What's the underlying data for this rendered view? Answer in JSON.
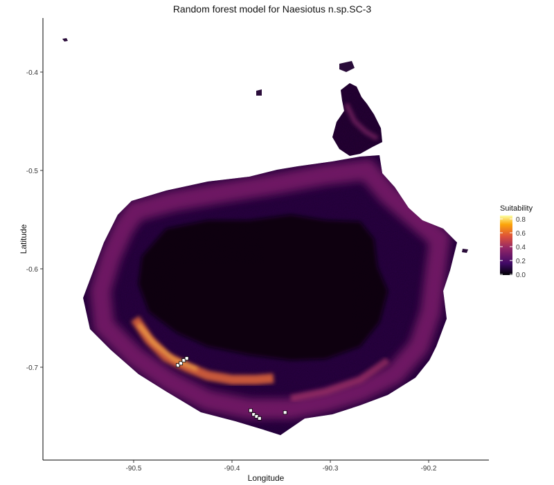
{
  "title": "Random forest model for Naesiotus n.sp.SC-3",
  "xlabel": "Longitude",
  "ylabel": "Latitude",
  "x_ticks": [
    "-90.5",
    "-90.4",
    "-90.3",
    "-90.2"
  ],
  "y_ticks": [
    "-0.4",
    "-0.5",
    "-0.6",
    "-0.7"
  ],
  "legend": {
    "title": "Suitability",
    "labels": [
      "0.8",
      "0.6",
      "0.4",
      "0.2",
      "0.0"
    ],
    "colors": [
      "#000004",
      "#420a68",
      "#932667",
      "#dd513a",
      "#fca50a",
      "#fcffa4"
    ]
  },
  "chart_data": {
    "type": "heatmap",
    "title": "Random forest model for Naesiotus n.sp.SC-3",
    "xlabel": "Longitude",
    "ylabel": "Latitude",
    "xlim": [
      -90.59,
      -90.16
    ],
    "ylim": [
      -0.775,
      -0.345
    ],
    "value_range": [
      0.0,
      0.85
    ],
    "colormap": "inferno",
    "occurrence_points": [
      {
        "lon": -90.455,
        "lat": -0.698
      },
      {
        "lon": -90.452,
        "lat": -0.696
      },
      {
        "lon": -90.449,
        "lat": -0.693
      },
      {
        "lon": -90.446,
        "lat": -0.691
      },
      {
        "lon": -90.381,
        "lat": -0.744
      },
      {
        "lon": -90.378,
        "lat": -0.748
      },
      {
        "lon": -90.375,
        "lat": -0.75
      },
      {
        "lon": -90.372,
        "lat": -0.752
      },
      {
        "lon": -90.346,
        "lat": -0.746
      }
    ]
  }
}
